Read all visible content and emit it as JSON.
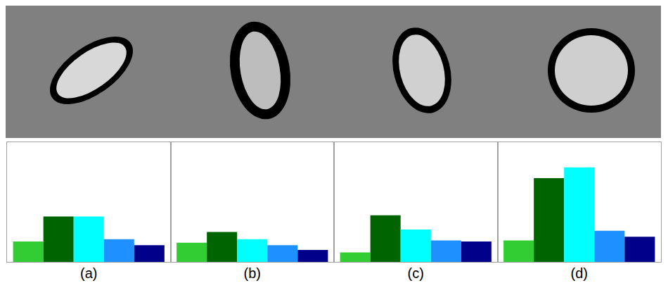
{
  "chart_data": [
    {
      "type": "bar",
      "title": "(a)",
      "categories": [
        null,
        null,
        null,
        null,
        null
      ],
      "values": [
        0.17,
        0.38,
        0.38,
        0.19,
        0.14
      ],
      "colors": [
        "#32cd32",
        "#006400",
        "#00ffff",
        "#1e90ff",
        "#00008b"
      ],
      "ylim": [
        0,
        1
      ],
      "grid": false,
      "tick_labels": false
    },
    {
      "type": "bar",
      "title": "(b)",
      "categories": [
        null,
        null,
        null,
        null,
        null
      ],
      "values": [
        0.16,
        0.25,
        0.19,
        0.14,
        0.1
      ],
      "colors": [
        "#32cd32",
        "#006400",
        "#00ffff",
        "#1e90ff",
        "#00008b"
      ],
      "ylim": [
        0,
        1
      ],
      "grid": false,
      "tick_labels": false
    },
    {
      "type": "bar",
      "title": "(c)",
      "categories": [
        null,
        null,
        null,
        null,
        null
      ],
      "values": [
        0.08,
        0.39,
        0.27,
        0.18,
        0.17
      ],
      "colors": [
        "#32cd32",
        "#006400",
        "#00ffff",
        "#1e90ff",
        "#00008b"
      ],
      "ylim": [
        0,
        1
      ],
      "grid": false,
      "tick_labels": false
    },
    {
      "type": "bar",
      "title": "(d)",
      "categories": [
        null,
        null,
        null,
        null,
        null
      ],
      "values": [
        0.18,
        0.7,
        0.79,
        0.26,
        0.21
      ],
      "colors": [
        "#32cd32",
        "#006400",
        "#00ffff",
        "#1e90ff",
        "#00008b"
      ],
      "ylim": [
        0,
        1
      ],
      "grid": false,
      "tick_labels": false
    }
  ]
}
